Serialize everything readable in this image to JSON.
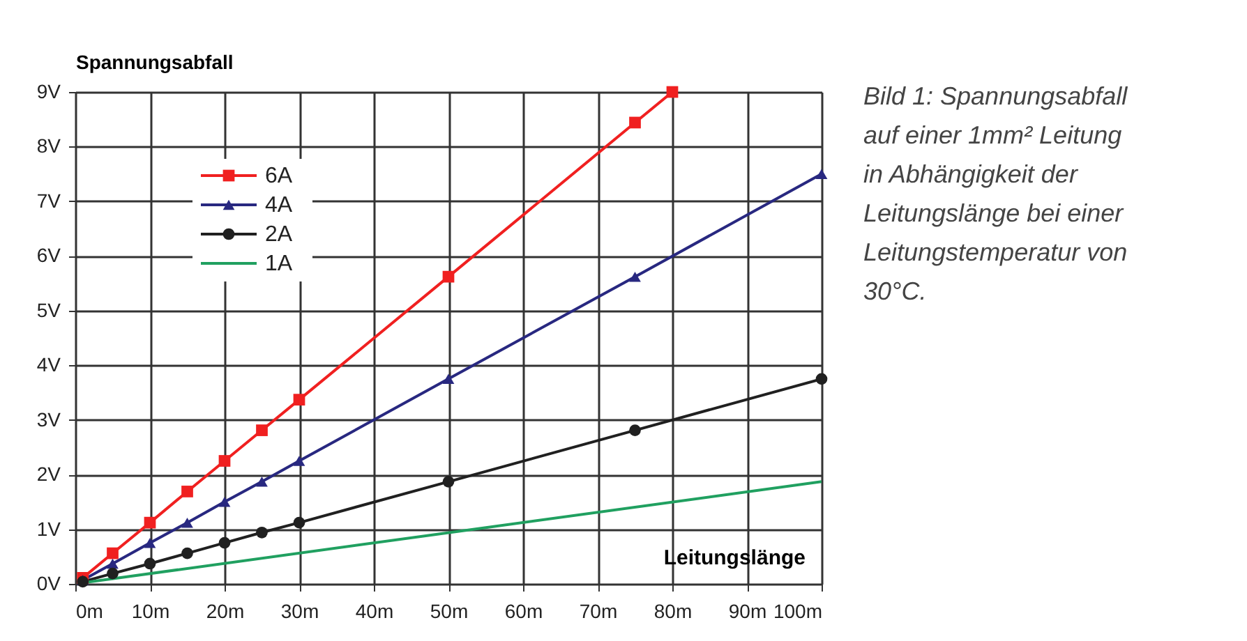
{
  "chart_data": {
    "type": "line",
    "ylabel": "Spannungsabfall",
    "xlabel": "Leitungslänge",
    "xlim": [
      0,
      100
    ],
    "ylim": [
      0,
      9
    ],
    "xticks": [
      {
        "value": 0,
        "label": "0m"
      },
      {
        "value": 10,
        "label": "10m"
      },
      {
        "value": 20,
        "label": "20m"
      },
      {
        "value": 30,
        "label": "30m"
      },
      {
        "value": 40,
        "label": "40m"
      },
      {
        "value": 50,
        "label": "50m"
      },
      {
        "value": 60,
        "label": "60m"
      },
      {
        "value": 70,
        "label": "70m"
      },
      {
        "value": 80,
        "label": "80m"
      },
      {
        "value": 90,
        "label": "90m"
      },
      {
        "value": 100,
        "label": "100m"
      }
    ],
    "yticks": [
      {
        "value": 0,
        "label": "0V"
      },
      {
        "value": 1,
        "label": "1V"
      },
      {
        "value": 2,
        "label": "2V"
      },
      {
        "value": 3,
        "label": "3V"
      },
      {
        "value": 4,
        "label": "4V"
      },
      {
        "value": 5,
        "label": "5V"
      },
      {
        "value": 6,
        "label": "6V"
      },
      {
        "value": 7,
        "label": "7V"
      },
      {
        "value": 8,
        "label": "8V"
      },
      {
        "value": 9,
        "label": "9V"
      }
    ],
    "grid": true,
    "legend": "top left",
    "line_style": "solid",
    "series": [
      {
        "name": "6A",
        "color": "#f02020",
        "marker": "square",
        "x": [
          1,
          5,
          10,
          15,
          20,
          25,
          30,
          50,
          75,
          80
        ],
        "values": [
          0.11,
          0.56,
          1.12,
          1.69,
          2.25,
          2.81,
          3.37,
          5.62,
          8.44,
          9.0
        ]
      },
      {
        "name": "4A",
        "color": "#282880",
        "marker": "triangle",
        "x": [
          1,
          5,
          10,
          15,
          20,
          25,
          30,
          50,
          75,
          100
        ],
        "values": [
          0.07,
          0.37,
          0.75,
          1.12,
          1.5,
          1.87,
          2.25,
          3.75,
          5.62,
          7.5
        ]
      },
      {
        "name": "2A",
        "color": "#202020",
        "marker": "circle",
        "x": [
          1,
          5,
          10,
          15,
          20,
          25,
          30,
          50,
          75,
          100
        ],
        "values": [
          0.04,
          0.19,
          0.37,
          0.56,
          0.75,
          0.94,
          1.12,
          1.87,
          2.81,
          3.75
        ]
      },
      {
        "name": "1A",
        "color": "#20a060",
        "marker": "none",
        "x": [
          1,
          100
        ],
        "values": [
          0.02,
          1.87
        ]
      }
    ],
    "annotations": [
      "Bild 1: Spannungsabfall auf einer 1mm² Leitung in Abhängigkeit der Leitungslänge bei einer Leitungstemperatur von 30°C."
    ]
  }
}
